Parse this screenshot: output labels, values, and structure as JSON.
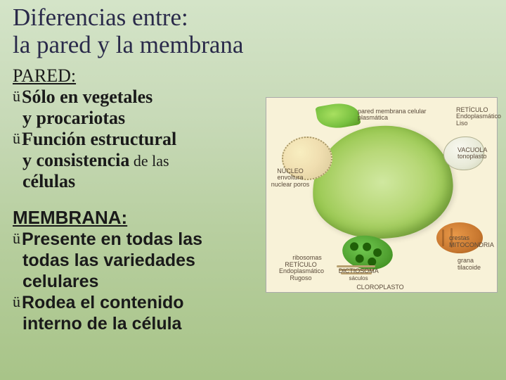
{
  "title": {
    "line1": "Diferencias entre:",
    "line2": "la pared y la membrana"
  },
  "section1": {
    "header": "PARED:",
    "bullets": [
      {
        "t1": "Sólo en vegetales",
        "t2": "y  procariotas"
      },
      {
        "t1": "Función estructural",
        "t2": "y consistencia",
        "tail": " de las",
        "t3": "células"
      }
    ]
  },
  "section2": {
    "header": "MEMBRANA:",
    "bullets": [
      {
        "t1": "Presente en todas las",
        "t2": "todas las  variedades",
        "t3": "celulares"
      },
      {
        "t1": "Rodea el contenido",
        "t2": "interno de la célula"
      }
    ]
  },
  "diagram": {
    "labels": {
      "nucleo": "NÚCLEO envoltura nuclear poros",
      "reticulo_liso": "RETÍCULO Endoplasmático Liso",
      "pared_membrana": "pared  membrana celular  plasmática",
      "vacuola": "VACUOLA tonoplasto",
      "mitocondria": "MITOCONDRIA",
      "crestas": "crestas",
      "grana": "grana",
      "tilacoide": "tilacoide",
      "cloroplasto": "CLOROPLASTO",
      "dictiosoma": "DICTIOSOMA",
      "cisternas": "sáculos",
      "ribosomas": "ribosomas",
      "reticulo_rugoso": "RETÍCULO Endoplasmático Rugoso"
    },
    "colors": {
      "background": "#f8f2d8",
      "cell_fill": "#98c850",
      "nucleus": "#f0deb0",
      "vacuole": "#e8ead8",
      "mitochondria": "#c87830",
      "chloroplast": "#50a030",
      "label_text": "#5a4a3a"
    }
  },
  "styling": {
    "bg_gradient": [
      "#d4e4c8",
      "#a8c488"
    ],
    "title_color": "#2a2a4a",
    "text_color": "#1a1a1a",
    "check_glyph": "ü"
  }
}
